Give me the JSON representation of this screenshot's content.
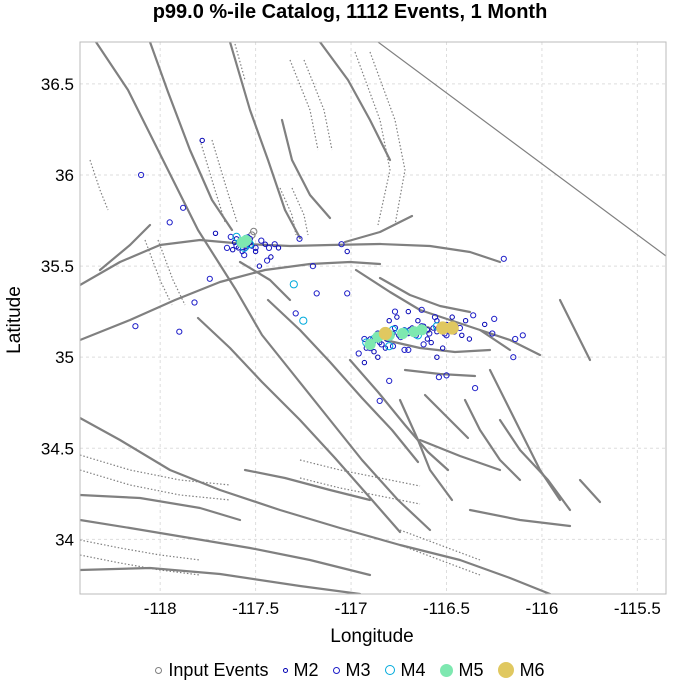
{
  "chart_data": {
    "type": "scatter",
    "title": "p99.0 %-ile Catalog, 1112 Events, 1 Month",
    "xlabel": "Longitude",
    "ylabel": "Latitude",
    "xlim": [
      -118.42,
      -115.35
    ],
    "ylim": [
      33.7,
      36.73
    ],
    "xticks": [
      -118,
      -117.5,
      -117,
      -116.5,
      -116,
      -115.5
    ],
    "xtick_labels": [
      "-118",
      "-117.5",
      "-117",
      "-116.5",
      "-116",
      "-115.5"
    ],
    "yticks": [
      34,
      34.5,
      35,
      35.5,
      36,
      36.5
    ],
    "ytick_labels": [
      "34",
      "34.5",
      "35",
      "35.5",
      "36",
      "36.5"
    ],
    "grid": true,
    "legend_position": "bottom",
    "series": [
      {
        "name": "Input Events",
        "color": "#808080",
        "fill": "none",
        "points": [
          [
            -117.52,
            35.67
          ],
          [
            -117.51,
            35.69
          ],
          [
            -117.55,
            35.62
          ],
          [
            -116.82,
            35.12
          ],
          [
            -116.7,
            35.14
          ],
          [
            -116.6,
            35.15
          ]
        ]
      },
      {
        "name": "M2",
        "color": "#0000b4",
        "fill": "none",
        "points": [
          [
            -117.6,
            35.65
          ],
          [
            -117.58,
            35.62
          ],
          [
            -117.56,
            35.64
          ],
          [
            -117.55,
            35.6
          ],
          [
            -117.54,
            35.66
          ],
          [
            -117.53,
            35.63
          ],
          [
            -117.59,
            35.6
          ],
          [
            -117.57,
            35.58
          ],
          [
            -117.61,
            35.63
          ],
          [
            -117.52,
            35.61
          ],
          [
            -117.5,
            35.58
          ],
          [
            -117.62,
            35.59
          ],
          [
            -117.45,
            35.62
          ],
          [
            -117.42,
            35.55
          ],
          [
            -117.48,
            35.5
          ],
          [
            -117.38,
            35.6
          ],
          [
            -116.9,
            35.1
          ],
          [
            -116.87,
            35.12
          ],
          [
            -116.85,
            35.08
          ],
          [
            -116.83,
            35.14
          ],
          [
            -116.8,
            35.11
          ],
          [
            -116.78,
            35.13
          ],
          [
            -116.75,
            35.12
          ],
          [
            -116.72,
            35.15
          ],
          [
            -116.7,
            35.13
          ],
          [
            -116.68,
            35.16
          ],
          [
            -116.65,
            35.14
          ],
          [
            -116.62,
            35.17
          ],
          [
            -116.6,
            35.15
          ],
          [
            -116.57,
            35.16
          ],
          [
            -116.55,
            35.14
          ],
          [
            -116.53,
            35.17
          ],
          [
            -116.5,
            35.18
          ],
          [
            -116.48,
            35.15
          ],
          [
            -116.45,
            35.17
          ],
          [
            -116.92,
            35.05
          ],
          [
            -116.88,
            35.03
          ],
          [
            -116.86,
            35.0
          ],
          [
            -116.82,
            35.05
          ],
          [
            -116.8,
            35.2
          ],
          [
            -116.76,
            35.22
          ],
          [
            -116.7,
            35.25
          ],
          [
            -116.65,
            35.2
          ],
          [
            -116.6,
            35.1
          ],
          [
            -116.58,
            35.08
          ],
          [
            -116.55,
            35.2
          ],
          [
            -116.52,
            35.05
          ],
          [
            -116.47,
            35.22
          ],
          [
            -116.42,
            35.12
          ],
          [
            -116.4,
            35.2
          ],
          [
            -116.38,
            35.1
          ],
          [
            -117.78,
            36.19
          ],
          [
            -117.71,
            35.68
          ],
          [
            -117.02,
            35.58
          ],
          [
            -116.3,
            35.18
          ],
          [
            -116.55,
            35.0
          ],
          [
            -116.93,
            34.97
          ]
        ]
      },
      {
        "name": "M3",
        "color": "#1e1ec8",
        "fill": "none",
        "points": [
          [
            -117.58,
            35.64
          ],
          [
            -117.55,
            35.61
          ],
          [
            -117.6,
            35.61
          ],
          [
            -117.53,
            35.65
          ],
          [
            -117.47,
            35.64
          ],
          [
            -117.65,
            35.6
          ],
          [
            -117.63,
            35.66
          ],
          [
            -117.5,
            35.6
          ],
          [
            -117.56,
            35.56
          ],
          [
            -118.13,
            35.17
          ],
          [
            -117.9,
            35.14
          ],
          [
            -117.82,
            35.3
          ],
          [
            -117.18,
            35.35
          ],
          [
            -117.27,
            35.65
          ],
          [
            -117.44,
            35.53
          ],
          [
            -117.05,
            35.62
          ],
          [
            -116.2,
            35.54
          ],
          [
            -116.5,
            34.9
          ],
          [
            -116.8,
            34.87
          ],
          [
            -116.85,
            34.76
          ],
          [
            -116.36,
            35.23
          ],
          [
            -116.14,
            35.1
          ],
          [
            -116.26,
            35.13
          ],
          [
            -117.02,
            35.35
          ],
          [
            -116.72,
            35.04
          ],
          [
            -116.63,
            35.26
          ],
          [
            -116.9,
            35.05
          ],
          [
            -116.88,
            35.09
          ],
          [
            -116.84,
            35.07
          ],
          [
            -116.81,
            35.1
          ],
          [
            -116.77,
            35.16
          ],
          [
            -116.74,
            35.11
          ],
          [
            -116.69,
            35.15
          ],
          [
            -116.66,
            35.12
          ],
          [
            -116.63,
            35.17
          ],
          [
            -116.59,
            35.13
          ],
          [
            -116.54,
            35.16
          ],
          [
            -116.51,
            35.13
          ],
          [
            -116.46,
            35.14
          ],
          [
            -116.43,
            35.16
          ],
          [
            -116.5,
            35.12
          ],
          [
            -116.86,
            35.13
          ],
          [
            -116.93,
            35.1
          ],
          [
            -116.77,
            35.25
          ],
          [
            -116.7,
            35.04
          ],
          [
            -116.62,
            35.07
          ],
          [
            -116.56,
            35.22
          ],
          [
            -117.88,
            35.82
          ],
          [
            -117.95,
            35.74
          ],
          [
            -117.74,
            35.43
          ],
          [
            -117.29,
            35.24
          ],
          [
            -116.96,
            35.02
          ],
          [
            -116.54,
            34.89
          ],
          [
            -116.35,
            34.83
          ],
          [
            -116.25,
            35.21
          ],
          [
            -117.2,
            35.5
          ],
          [
            -118.1,
            36.0
          ],
          [
            -117.4,
            35.62
          ],
          [
            -117.43,
            35.6
          ],
          [
            -116.1,
            35.12
          ],
          [
            -116.15,
            35.0
          ],
          [
            -116.78,
            35.06
          ]
        ]
      },
      {
        "name": "M4",
        "color": "#00aadc",
        "fill": "none",
        "points": [
          [
            -117.58,
            35.63
          ],
          [
            -117.56,
            35.6
          ],
          [
            -117.53,
            35.62
          ],
          [
            -117.6,
            35.66
          ],
          [
            -117.55,
            35.65
          ],
          [
            -117.3,
            35.4
          ],
          [
            -117.25,
            35.2
          ],
          [
            -116.88,
            35.1
          ],
          [
            -116.8,
            35.06
          ],
          [
            -116.72,
            35.14
          ],
          [
            -116.65,
            35.12
          ],
          [
            -116.55,
            35.17
          ],
          [
            -116.82,
            35.14
          ],
          [
            -116.78,
            35.15
          ],
          [
            -116.92,
            35.08
          ]
        ]
      },
      {
        "name": "M5",
        "color": "#7ee8b0",
        "fill": "#7ee8b0",
        "points": [
          [
            -117.57,
            35.63
          ],
          [
            -117.55,
            35.64
          ],
          [
            -116.8,
            35.12
          ],
          [
            -116.73,
            35.13
          ],
          [
            -116.67,
            35.14
          ],
          [
            -116.86,
            35.11
          ],
          [
            -116.9,
            35.07
          ],
          [
            -116.63,
            35.15
          ]
        ]
      },
      {
        "name": "M6",
        "color": "#e0c860",
        "fill": "#e0c860",
        "points": [
          [
            -116.52,
            35.16
          ],
          [
            -116.82,
            35.13
          ],
          [
            -116.47,
            35.16
          ]
        ]
      }
    ]
  },
  "legend": {
    "items": [
      {
        "label": "Input Events",
        "stroke": "#808080",
        "fill": "none",
        "size": 7
      },
      {
        "label": "M2",
        "stroke": "#0000b4",
        "fill": "none",
        "size": 5
      },
      {
        "label": "M3",
        "stroke": "#1e1ec8",
        "fill": "none",
        "size": 7
      },
      {
        "label": "M4",
        "stroke": "#00aadc",
        "fill": "none",
        "size": 10
      },
      {
        "label": "M5",
        "stroke": "#7ee8b0",
        "fill": "#7ee8b0",
        "size": 13
      },
      {
        "label": "M6",
        "stroke": "#e0c860",
        "fill": "#e0c860",
        "size": 16
      }
    ]
  }
}
